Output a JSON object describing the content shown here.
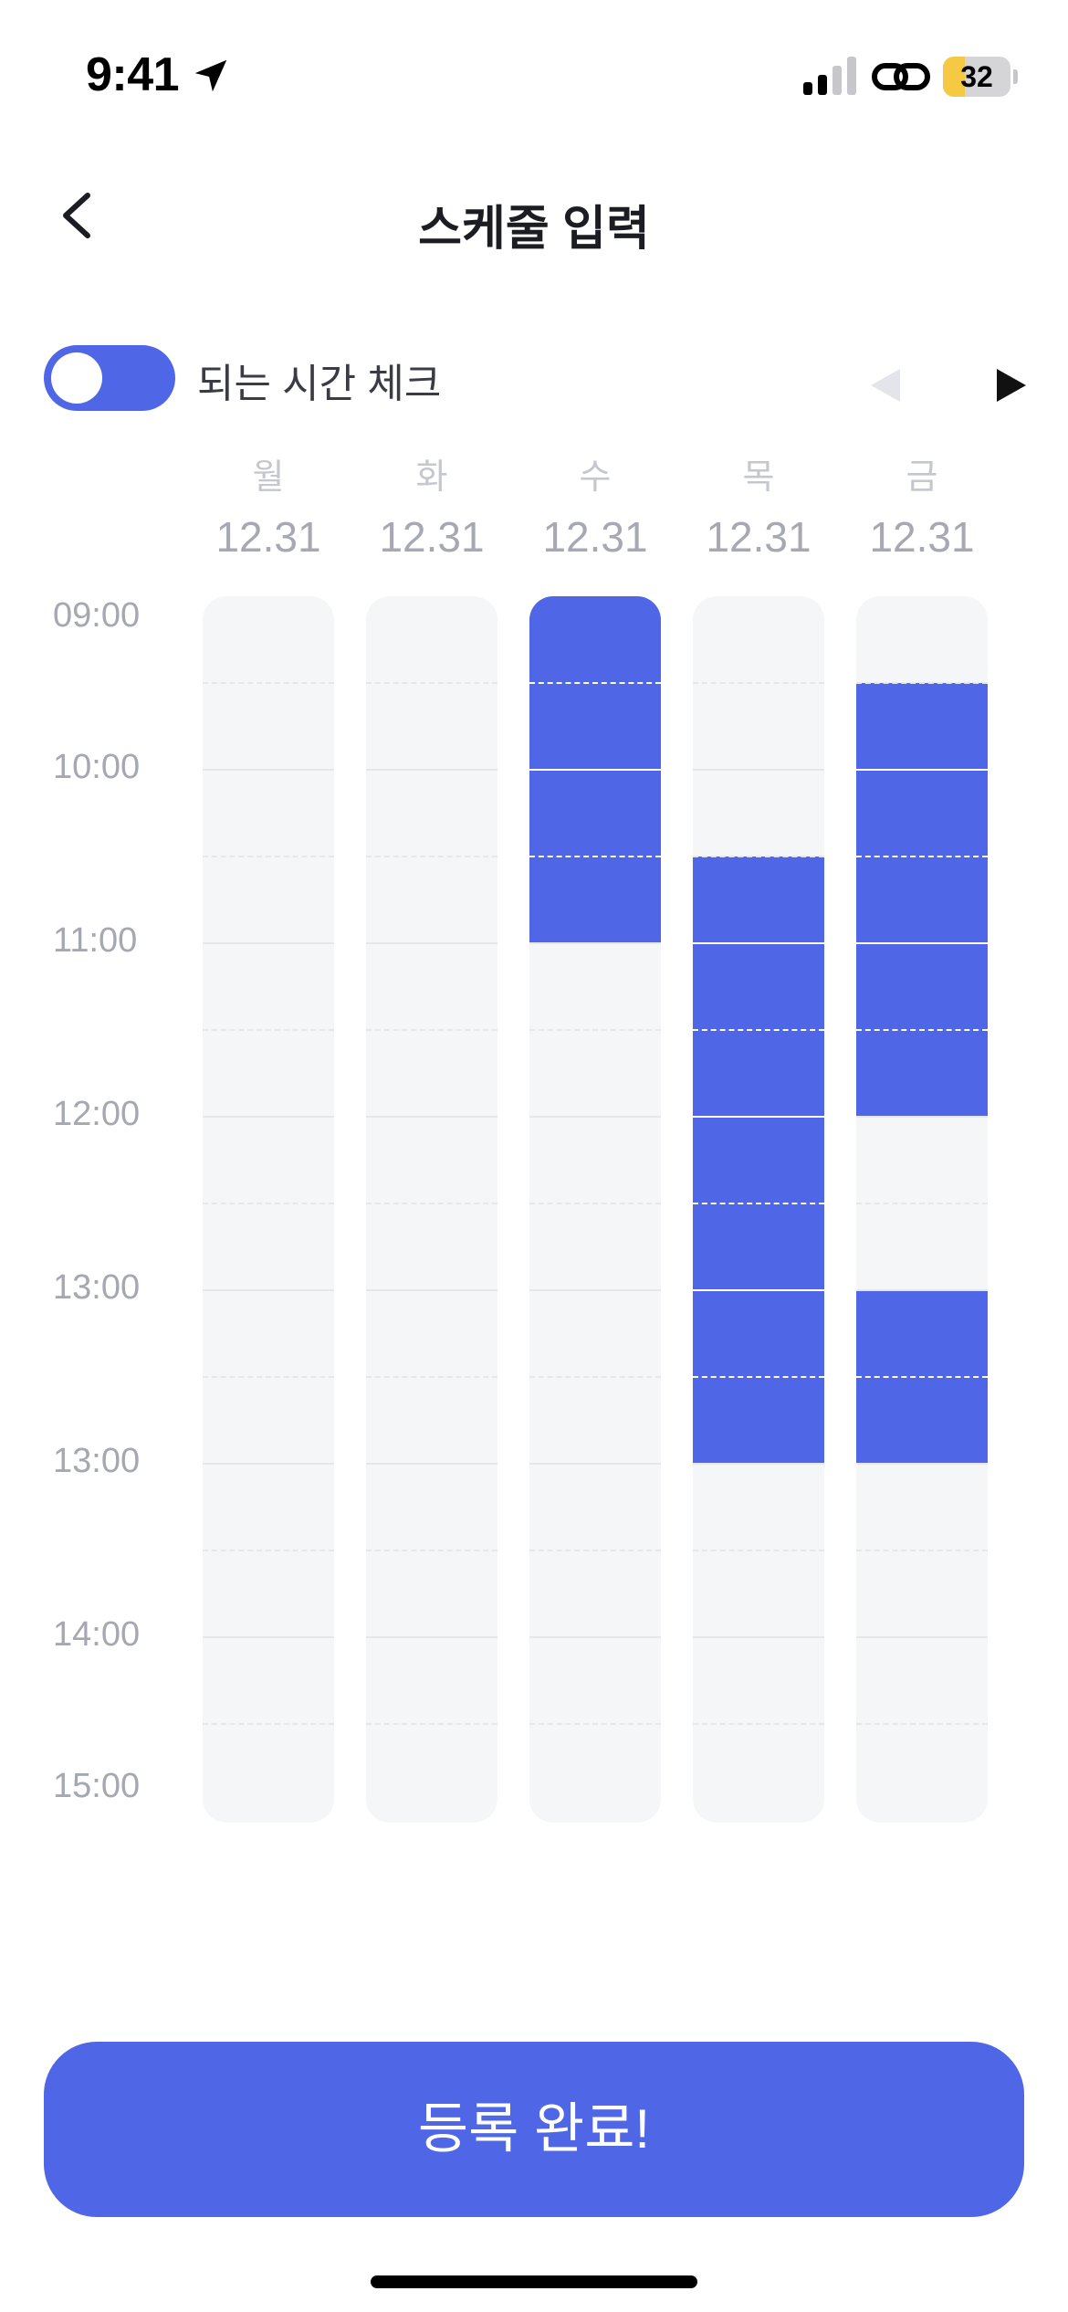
{
  "status_bar": {
    "time": "9:41",
    "battery": "32",
    "battery_level": 0.32
  },
  "header": {
    "title": "스케줄 입력"
  },
  "toggle": {
    "label": "되는 시간 체크",
    "on": true
  },
  "days": [
    {
      "name": "월",
      "date": "12.31"
    },
    {
      "name": "화",
      "date": "12.31"
    },
    {
      "name": "수",
      "date": "12.31"
    },
    {
      "name": "목",
      "date": "12.31"
    },
    {
      "name": "금",
      "date": "12.31"
    }
  ],
  "time_labels": [
    "09:00",
    "10:00",
    "11:00",
    "12:00",
    "13:00",
    "13:00",
    "14:00",
    "15:00"
  ],
  "selected_slots": [
    [],
    [],
    [
      0,
      1,
      2,
      3
    ],
    [
      3,
      4,
      5,
      6,
      7,
      8,
      9
    ],
    [
      1,
      2,
      3,
      4,
      5,
      8,
      9
    ]
  ],
  "colors": {
    "accent": "#4F67E6",
    "cell_bg": "#F5F6F8"
  },
  "submit": {
    "label": "등록 완료!"
  }
}
